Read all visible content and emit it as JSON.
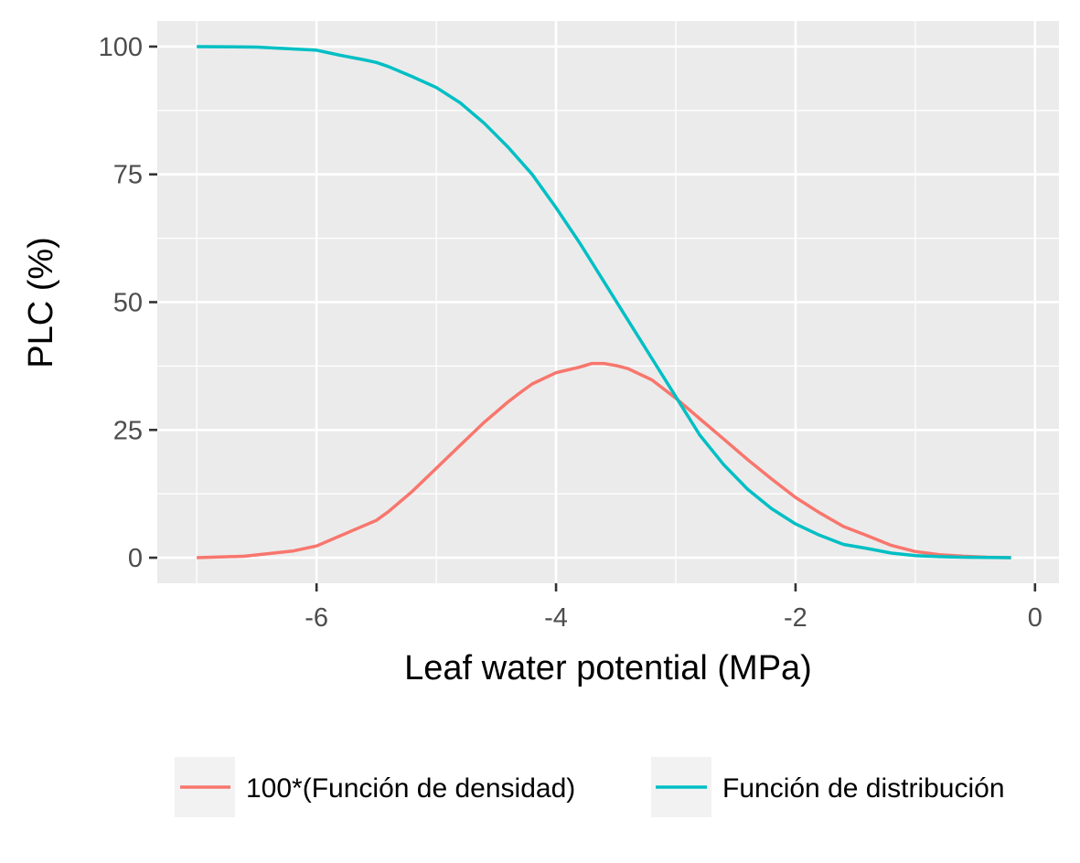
{
  "chart_data": {
    "type": "line",
    "xlabel": "Leaf water potential (MPa)",
    "ylabel": "PLC (%)",
    "xlim": [
      -7.33,
      0.2
    ],
    "ylim": [
      -5,
      105
    ],
    "x_ticks": [
      -6,
      -4,
      -2,
      0
    ],
    "x_tick_labels": [
      "-6",
      "-4",
      "-2",
      "0"
    ],
    "y_ticks": [
      0,
      25,
      50,
      75,
      100
    ],
    "y_tick_labels": [
      "0",
      "25",
      "50",
      "75",
      "100"
    ],
    "grid": true,
    "legend_position": "bottom",
    "series": [
      {
        "name": "100*(Función de densidad)",
        "color": "#F8766D",
        "x": [
          -7.0,
          -6.6,
          -6.2,
          -6.0,
          -5.8,
          -5.5,
          -5.4,
          -5.2,
          -5.0,
          -4.8,
          -4.6,
          -4.4,
          -4.3,
          -4.2,
          -4.0,
          -3.8,
          -3.7,
          -3.6,
          -3.5,
          -3.4,
          -3.2,
          -3.0,
          -2.8,
          -2.6,
          -2.4,
          -2.2,
          -2.0,
          -1.8,
          -1.6,
          -1.4,
          -1.2,
          -1.0,
          -0.8,
          -0.6,
          -0.4,
          -0.2
        ],
        "y": [
          0,
          0.3,
          1.3,
          2.3,
          4.3,
          7.3,
          9,
          13,
          17.5,
          22,
          26.5,
          30.5,
          32.3,
          34,
          36.2,
          37.3,
          38,
          38,
          37.6,
          37,
          34.8,
          31.2,
          27.2,
          23.2,
          19.2,
          15.4,
          11.8,
          8.8,
          6.1,
          4.3,
          2.4,
          1.2,
          0.6,
          0.3,
          0.1,
          0
        ]
      },
      {
        "name": "Función de distribución",
        "color": "#00BFC4",
        "x": [
          -7.0,
          -6.5,
          -6.0,
          -5.8,
          -5.6,
          -5.5,
          -5.4,
          -5.2,
          -5.0,
          -4.8,
          -4.6,
          -4.4,
          -4.2,
          -4.0,
          -3.8,
          -3.6,
          -3.4,
          -3.2,
          -3.0,
          -2.8,
          -2.6,
          -2.4,
          -2.2,
          -2.0,
          -1.8,
          -1.6,
          -1.4,
          -1.2,
          -1.0,
          -0.8,
          -0.6,
          -0.4,
          -0.2
        ],
        "y": [
          100,
          99.9,
          99.3,
          98.3,
          97.4,
          96.9,
          96.1,
          94.1,
          92,
          89,
          85,
          80.3,
          75,
          68.5,
          61.5,
          54,
          46.5,
          39,
          31.5,
          24,
          18.2,
          13.4,
          9.6,
          6.6,
          4.4,
          2.6,
          1.8,
          0.9,
          0.4,
          0.2,
          0.1,
          0.05,
          0
        ]
      }
    ]
  }
}
